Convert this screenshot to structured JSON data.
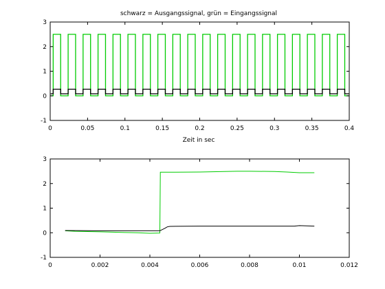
{
  "chart_data": [
    {
      "type": "line",
      "title": "schwarz = Ausgangssignal, grün = Eingangssignal",
      "xlabel": "Zeit in sec",
      "ylabel": "",
      "xlim": [
        0,
        0.4
      ],
      "ylim": [
        -1,
        3
      ],
      "xticks": [
        "0",
        "0.05",
        "0.1",
        "0.15",
        "0.2",
        "0.25",
        "0.3",
        "0.35",
        "0.4"
      ],
      "yticks": [
        "-1",
        "0",
        "1",
        "2",
        "3"
      ],
      "grid": false,
      "square_wave": {
        "period": 0.02,
        "first_rise": 0.004,
        "rise_times": [
          0.004,
          0.024,
          0.044,
          0.064,
          0.084,
          0.104,
          0.124,
          0.144,
          0.164,
          0.184,
          0.204,
          0.224,
          0.244,
          0.264,
          0.284,
          0.304,
          0.324,
          0.344,
          0.364,
          0.384
        ],
        "fall_times": [
          0.014,
          0.034,
          0.054,
          0.074,
          0.094,
          0.114,
          0.134,
          0.154,
          0.174,
          0.194,
          0.214,
          0.234,
          0.254,
          0.274,
          0.294,
          0.314,
          0.334,
          0.354,
          0.374,
          0.394
        ],
        "x_start": 0.0006,
        "x_end": 0.3995
      },
      "series": [
        {
          "color": "#00cc00",
          "low": 0.0,
          "high": 2.5
        },
        {
          "color": "#000000",
          "low": 0.08,
          "high": 0.27
        }
      ]
    },
    {
      "type": "line",
      "title": "",
      "xlabel": "",
      "ylabel": "",
      "xlim": [
        0,
        0.012
      ],
      "ylim": [
        -1,
        3
      ],
      "xticks": [
        "0",
        "0.002",
        "0.004",
        "0.006",
        "0.008",
        "0.01",
        "0.012"
      ],
      "yticks": [
        "-1",
        "0",
        "1",
        "2",
        "3"
      ],
      "grid": false,
      "series": [
        {
          "color": "#00cc00",
          "x": [
            0.0006,
            0.001,
            0.002,
            0.003,
            0.0035,
            0.004,
            0.0044,
            0.00442,
            0.005,
            0.006,
            0.007,
            0.0075,
            0.008,
            0.009,
            0.0095,
            0.01,
            0.0106
          ],
          "y": [
            0.08,
            0.06,
            0.04,
            0.01,
            0.0,
            -0.02,
            -0.01,
            2.46,
            2.46,
            2.47,
            2.49,
            2.5,
            2.5,
            2.49,
            2.47,
            2.44,
            2.44
          ]
        },
        {
          "color": "#000000",
          "x": [
            0.0006,
            0.002,
            0.004,
            0.0044,
            0.0046,
            0.0047,
            0.0048,
            0.006,
            0.008,
            0.0098,
            0.01,
            0.0106
          ],
          "y": [
            0.09,
            0.08,
            0.08,
            0.08,
            0.18,
            0.24,
            0.26,
            0.27,
            0.27,
            0.27,
            0.29,
            0.27
          ]
        }
      ]
    }
  ]
}
